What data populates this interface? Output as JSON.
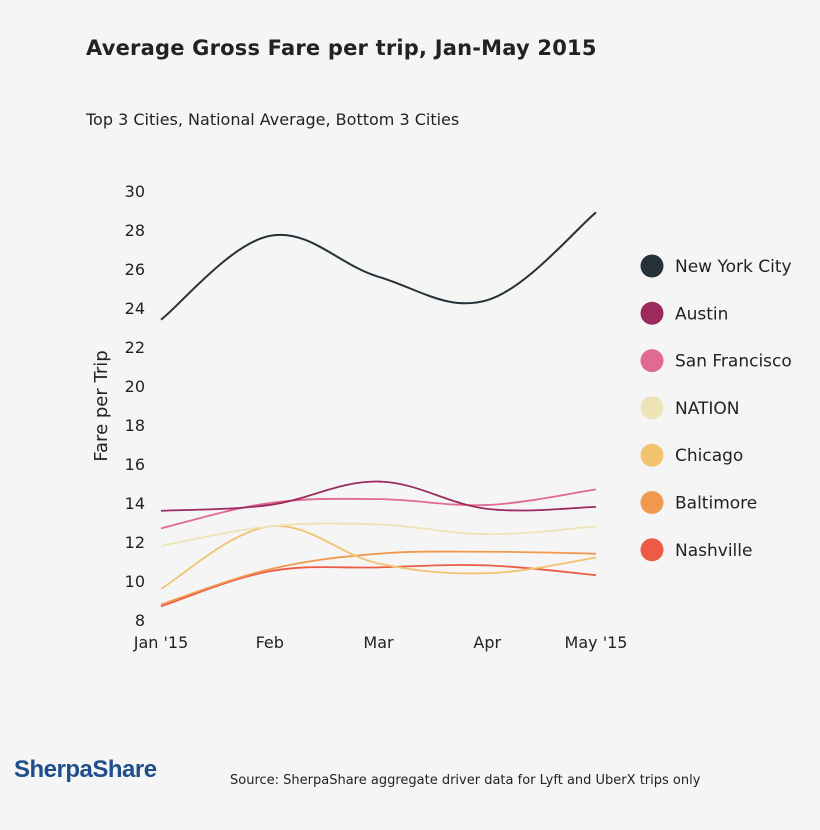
{
  "header": {
    "title": "Average Gross Fare per trip, Jan-May 2015",
    "subtitle": "Top 3 Cities, National Average, Bottom 3 Cities"
  },
  "footer": {
    "logo_text": "SherpaShare",
    "source": "Source: SherpaShare aggregate driver data for Lyft and UberX trips only"
  },
  "chart_data": {
    "type": "line",
    "title": "Average Gross Fare per trip, Jan-May 2015",
    "subtitle": "Top 3 Cities, National Average, Bottom 3 Cities",
    "xlabel": "",
    "ylabel": "Fare per Trip",
    "categories": [
      "Jan '15",
      "Feb",
      "Mar",
      "Apr",
      "May '15"
    ],
    "ylim": [
      8,
      30
    ],
    "yticks": [
      8,
      10,
      12,
      14,
      16,
      18,
      20,
      22,
      24,
      26,
      28,
      30
    ],
    "grid": false,
    "legend_position": "right",
    "smooth": true,
    "series": [
      {
        "name": "New York City",
        "color": "#263238",
        "values": [
          23.4,
          27.7,
          25.6,
          24.4,
          28.9
        ]
      },
      {
        "name": "Austin",
        "color": "#9c2a5e",
        "values": [
          13.6,
          13.9,
          15.1,
          13.7,
          13.8
        ]
      },
      {
        "name": "San Francisco",
        "color": "#e06a90",
        "values": [
          12.7,
          14.0,
          14.2,
          13.9,
          14.7
        ]
      },
      {
        "name": "NATION",
        "color": "#ece4b5",
        "values": [
          11.8,
          12.8,
          12.9,
          12.4,
          12.8
        ]
      },
      {
        "name": "Chicago",
        "color": "#f1c36e",
        "values": [
          9.6,
          12.8,
          10.9,
          10.4,
          11.2
        ]
      },
      {
        "name": "Baltimore",
        "color": "#f0994e",
        "values": [
          8.8,
          10.6,
          11.4,
          11.5,
          11.4
        ]
      },
      {
        "name": "Nashville",
        "color": "#ec5b45",
        "values": [
          8.7,
          10.5,
          10.7,
          10.8,
          10.3
        ]
      }
    ]
  }
}
